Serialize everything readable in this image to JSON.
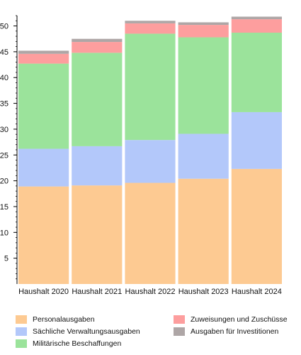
{
  "chart_data": {
    "type": "bar",
    "stacked": true,
    "categories": [
      "Haushalt 2020",
      "Haushalt 2021",
      "Haushalt 2022",
      "Haushalt 2023",
      "Haushalt 2024"
    ],
    "series": [
      {
        "name": "Personalausgaben",
        "color": "#fdca92",
        "values": [
          18.9,
          19.1,
          19.6,
          20.4,
          22.3
        ]
      },
      {
        "name": "Sächliche Verwaltungsausgaben",
        "color": "#b3c8fa",
        "values": [
          7.3,
          7.6,
          8.3,
          8.7,
          11.0
        ]
      },
      {
        "name": "Militärische Beschaffungen",
        "color": "#9be39b",
        "values": [
          16.5,
          18.1,
          20.6,
          18.7,
          15.4
        ]
      },
      {
        "name": "Zuweisungen und Zuschüsse",
        "color": "#fd9e9e",
        "values": [
          1.9,
          2.1,
          2.0,
          2.4,
          2.6
        ]
      },
      {
        "name": "Ausgaben für Investitionen",
        "color": "#aea6a6",
        "values": [
          0.6,
          0.6,
          0.5,
          0.5,
          0.5
        ]
      }
    ],
    "yticks": [
      5,
      10,
      15,
      20,
      25,
      30,
      35,
      40,
      45,
      50
    ],
    "ylim": [
      0,
      52
    ],
    "xlabel": "",
    "ylabel": "",
    "grid": false,
    "legend_position": "bottom"
  }
}
